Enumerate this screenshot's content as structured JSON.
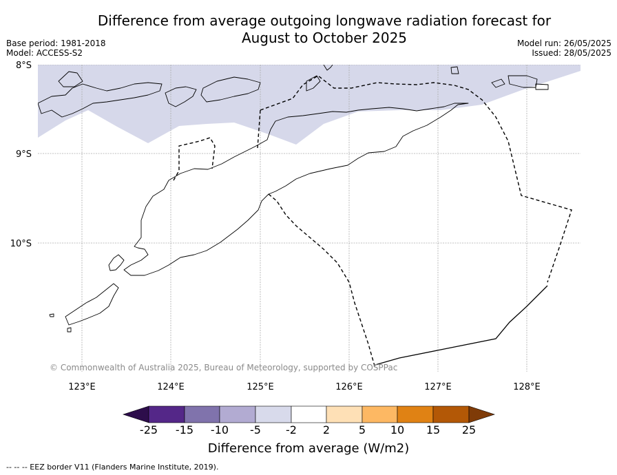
{
  "title": {
    "line1": "Difference from average outgoing longwave radiation forecast for",
    "line2": "August to October 2025"
  },
  "meta_left": {
    "base_period": "Base period: 1981-2018",
    "model": "Model: ACCESS-S2"
  },
  "meta_right": {
    "model_run": "Model run: 26/05/2025",
    "issued": "Issued: 28/05/2025"
  },
  "map": {
    "lat_labels": [
      "8°S",
      "9°S",
      "10°S"
    ],
    "lon_labels": [
      "123°E",
      "124°E",
      "125°E",
      "126°E",
      "127°E",
      "128°E"
    ],
    "copyright": "© Commonwealth of Australia 2025, Bureau of Meteorology, supported by COSPPac",
    "shaded_category": "-5 to -2",
    "colors": {
      "shade": "#d6d8ea",
      "grid": "#aaaaaa"
    }
  },
  "colorbar": {
    "title": "Difference from average (W/m2)",
    "labels": [
      "-25",
      "-15",
      "-10",
      "-5",
      "-2",
      "2",
      "5",
      "10",
      "15",
      "25"
    ],
    "colors": [
      "#2d0d4b",
      "#542788",
      "#8073ac",
      "#b2abd2",
      "#d8daeb",
      "#ffffff",
      "#fee0b6",
      "#fdb863",
      "#e08214",
      "#b35806",
      "#7f3b08"
    ]
  },
  "footnote": "--  --  -- EEZ border V11 (Flanders Marine Institute, 2019)."
}
